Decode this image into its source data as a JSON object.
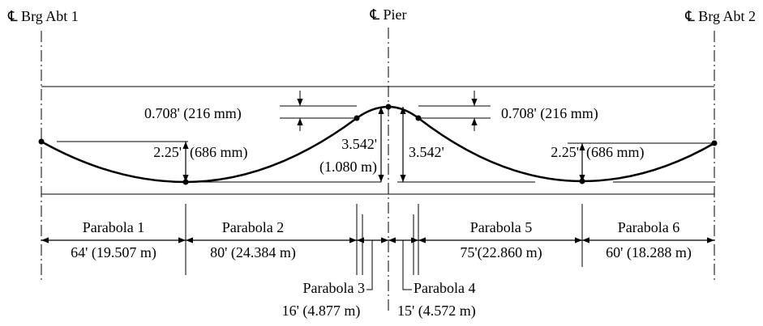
{
  "header": {
    "abutment_1": "℄ Brg Abt 1",
    "pier": "℄ Pier",
    "abutment_2": "℄ Brg Abt 2"
  },
  "dimensions": {
    "left_offset": "0.708' (216 mm)",
    "right_offset": "0.708' (216 mm)",
    "left_sag": "2.25'",
    "left_sag_metric": "(686 mm)",
    "pier_rise_left": "3.542'",
    "pier_rise_left_metric": "(1.080 m)",
    "pier_rise_right": "3.542'",
    "right_sag": "2.25'",
    "right_sag_metric": "(686 mm)"
  },
  "parabolas": [
    {
      "name": "Parabola 1",
      "length": "64' (19.507 m)"
    },
    {
      "name": "Parabola 2",
      "length": "80' (24.384 m)"
    },
    {
      "name": "Parabola 3",
      "length": "16' (4.877 m)"
    },
    {
      "name": "Parabola 4",
      "length": "15' (4.572 m)"
    },
    {
      "name": "Parabola 5",
      "length": "75'(22.860 m)"
    },
    {
      "name": "Parabola 6",
      "length": "60' (18.288 m)"
    }
  ]
}
